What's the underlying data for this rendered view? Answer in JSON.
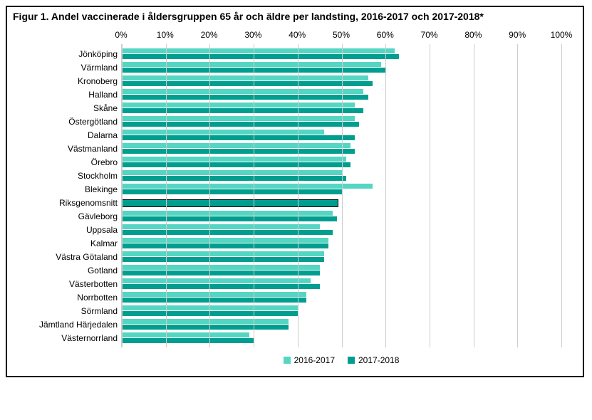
{
  "chart": {
    "type": "bar-horizontal-grouped",
    "title": "Figur 1. Andel vaccinerade i åldersgruppen 65 år och äldre per landsting, 2016-2017 och 2017-2018*",
    "title_fontsize": 14,
    "title_fontweight": "bold",
    "xmin": 0,
    "xmax": 100,
    "xtick_step": 10,
    "xtick_suffix": "%",
    "label_fontsize": 12,
    "background_color": "#ffffff",
    "grid_color": "#cccccc",
    "border_color": "#000000",
    "series": [
      {
        "name": "2016-2017",
        "color": "#55d6c2"
      },
      {
        "name": "2017-2018",
        "color": "#009e8e"
      }
    ],
    "riksgenomsnitt_color": "#009e8e",
    "riksgenomsnitt_border": "#000000",
    "categories": [
      {
        "label": "Jönköping",
        "values": [
          62,
          63
        ]
      },
      {
        "label": "Värmland",
        "values": [
          59,
          60
        ]
      },
      {
        "label": "Kronoberg",
        "values": [
          56,
          57
        ]
      },
      {
        "label": "Halland",
        "values": [
          55,
          56
        ]
      },
      {
        "label": "Skåne",
        "values": [
          53,
          55
        ]
      },
      {
        "label": "Östergötland",
        "values": [
          53,
          54
        ]
      },
      {
        "label": "Dalarna",
        "values": [
          46,
          53
        ]
      },
      {
        "label": "Västmanland",
        "values": [
          52,
          53
        ]
      },
      {
        "label": "Örebro",
        "values": [
          51,
          52
        ]
      },
      {
        "label": "Stockholm",
        "values": [
          50,
          51
        ]
      },
      {
        "label": "Blekinge",
        "values": [
          57,
          50
        ]
      },
      {
        "label": "Riksgenomsnitt",
        "values": [
          49
        ],
        "is_avg": true
      },
      {
        "label": "Gävleborg",
        "values": [
          48,
          49
        ]
      },
      {
        "label": "Uppsala",
        "values": [
          45,
          48
        ]
      },
      {
        "label": "Kalmar",
        "values": [
          47,
          47
        ]
      },
      {
        "label": "Västra Götaland",
        "values": [
          46,
          46
        ]
      },
      {
        "label": "Gotland",
        "values": [
          45,
          45
        ]
      },
      {
        "label": "Västerbotten",
        "values": [
          43,
          45
        ]
      },
      {
        "label": "Norrbotten",
        "values": [
          42,
          42
        ]
      },
      {
        "label": "Sörmland",
        "values": [
          40,
          40
        ]
      },
      {
        "label": "Jämtland Härjedalen",
        "values": [
          38,
          38
        ]
      },
      {
        "label": "Västernorrland",
        "values": [
          29,
          30
        ]
      }
    ]
  }
}
